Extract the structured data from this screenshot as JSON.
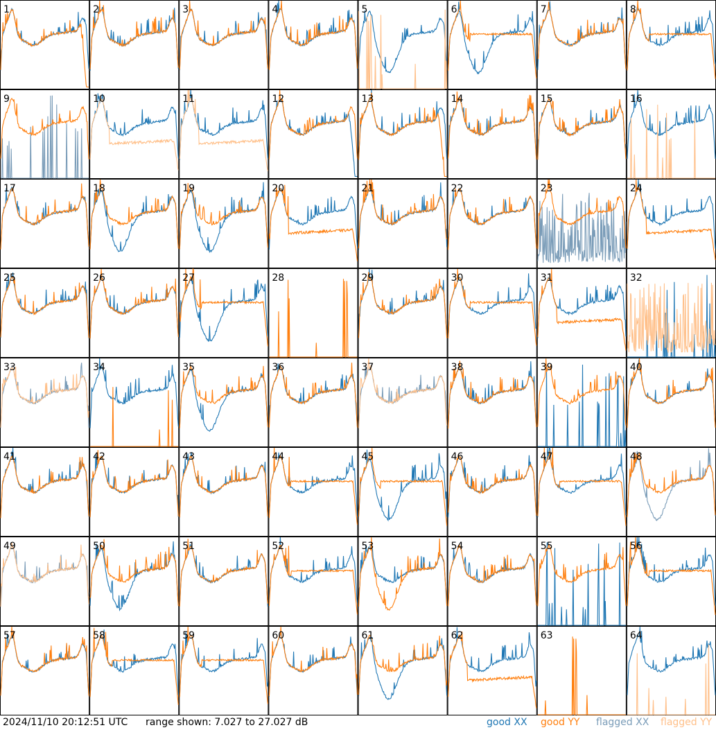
{
  "chart_data": {
    "type": "line",
    "layout": "small-multiples 8x8",
    "timestamp": "2024/11/10 20:12:51 UTC",
    "range_label": "range shown: 7.027 to 27.027 dB",
    "ylim": [
      7.027,
      27.027
    ],
    "y_unit": "dB",
    "legend": [
      {
        "key": "good_xx",
        "label": "good XX",
        "color": "#1f77b4"
      },
      {
        "key": "good_yy",
        "label": "good YY",
        "color": "#ff7f0e"
      },
      {
        "key": "flagged_xx",
        "label": "flagged XX",
        "color": "#7a9cb8"
      },
      {
        "key": "flagged_yy",
        "label": "flagged YY",
        "color": "#ffc08a"
      }
    ],
    "panels": [
      {
        "id": "1",
        "xx": "normal",
        "yy": "dropout",
        "xx_flag": false,
        "yy_flag": false
      },
      {
        "id": "2",
        "xx": "normal",
        "yy": "normal",
        "xx_flag": false,
        "yy_flag": false
      },
      {
        "id": "3",
        "xx": "normal",
        "yy": "normal",
        "xx_flag": false,
        "yy_flag": false
      },
      {
        "id": "4",
        "xx": "normal",
        "yy": "normal",
        "xx_flag": false,
        "yy_flag": false
      },
      {
        "id": "5",
        "xx": "dip",
        "yy": "dead",
        "xx_flag": false,
        "yy_flag": true
      },
      {
        "id": "6",
        "xx": "dip",
        "yy": "flat",
        "xx_flag": false,
        "yy_flag": false
      },
      {
        "id": "7",
        "xx": "normal",
        "yy": "normal",
        "xx_flag": false,
        "yy_flag": false
      },
      {
        "id": "8",
        "xx": "normal",
        "yy": "flat",
        "xx_flag": false,
        "yy_flag": false
      },
      {
        "id": "9",
        "xx": "dead",
        "yy": "normal",
        "xx_flag": true,
        "yy_flag": false
      },
      {
        "id": "10",
        "xx": "normal",
        "yy": "low",
        "xx_flag": false,
        "yy_flag": true
      },
      {
        "id": "11",
        "xx": "normal",
        "yy": "low",
        "xx_flag": false,
        "yy_flag": true
      },
      {
        "id": "12",
        "xx": "dropout",
        "yy": "normal",
        "xx_flag": false,
        "yy_flag": false
      },
      {
        "id": "13",
        "xx": "normal",
        "yy": "dropout",
        "xx_flag": false,
        "yy_flag": false
      },
      {
        "id": "14",
        "xx": "normal",
        "yy": "normal",
        "xx_flag": false,
        "yy_flag": false
      },
      {
        "id": "15",
        "xx": "normal",
        "yy": "normal",
        "xx_flag": false,
        "yy_flag": false
      },
      {
        "id": "16",
        "xx": "normal",
        "yy": "dead",
        "xx_flag": false,
        "yy_flag": true
      },
      {
        "id": "17",
        "xx": "normal",
        "yy": "normal",
        "xx_flag": false,
        "yy_flag": false
      },
      {
        "id": "18",
        "xx": "dip",
        "yy": "normal",
        "xx_flag": false,
        "yy_flag": false
      },
      {
        "id": "19",
        "xx": "dip",
        "yy": "normal",
        "xx_flag": false,
        "yy_flag": false
      },
      {
        "id": "20",
        "xx": "normal",
        "yy": "low",
        "xx_flag": false,
        "yy_flag": false
      },
      {
        "id": "21",
        "xx": "normal",
        "yy": "normal",
        "xx_flag": false,
        "yy_flag": false
      },
      {
        "id": "22",
        "xx": "normal",
        "yy": "normal",
        "xx_flag": false,
        "yy_flag": false
      },
      {
        "id": "23",
        "xx": "noise",
        "yy": "normal",
        "xx_flag": true,
        "yy_flag": false
      },
      {
        "id": "24",
        "xx": "normal",
        "yy": "low",
        "xx_flag": false,
        "yy_flag": false
      },
      {
        "id": "25",
        "xx": "normal",
        "yy": "normal",
        "xx_flag": false,
        "yy_flag": false
      },
      {
        "id": "26",
        "xx": "normal",
        "yy": "normal",
        "xx_flag": false,
        "yy_flag": false
      },
      {
        "id": "27",
        "xx": "dip",
        "yy": "flat",
        "xx_flag": false,
        "yy_flag": false
      },
      {
        "id": "28",
        "xx": "none",
        "yy": "dead",
        "xx_flag": false,
        "yy_flag": false
      },
      {
        "id": "29",
        "xx": "normal",
        "yy": "normal",
        "xx_flag": false,
        "yy_flag": false
      },
      {
        "id": "30",
        "xx": "normal",
        "yy": "flat",
        "xx_flag": false,
        "yy_flag": false
      },
      {
        "id": "31",
        "xx": "normal",
        "yy": "low",
        "xx_flag": false,
        "yy_flag": false
      },
      {
        "id": "32",
        "xx": "dead",
        "yy": "noise",
        "xx_flag": false,
        "yy_flag": true
      },
      {
        "id": "33",
        "xx": "normal",
        "yy": "normal",
        "xx_flag": true,
        "yy_flag": true
      },
      {
        "id": "34",
        "xx": "normal",
        "yy": "dead",
        "xx_flag": false,
        "yy_flag": false
      },
      {
        "id": "35",
        "xx": "dip",
        "yy": "normal",
        "xx_flag": false,
        "yy_flag": false
      },
      {
        "id": "36",
        "xx": "normal",
        "yy": "normal",
        "xx_flag": false,
        "yy_flag": false
      },
      {
        "id": "37",
        "xx": "normal",
        "yy": "normal",
        "xx_flag": true,
        "yy_flag": true
      },
      {
        "id": "38",
        "xx": "normal",
        "yy": "normal",
        "xx_flag": false,
        "yy_flag": false
      },
      {
        "id": "39",
        "xx": "dead",
        "yy": "normal",
        "xx_flag": false,
        "yy_flag": false
      },
      {
        "id": "40",
        "xx": "normal",
        "yy": "normal",
        "xx_flag": false,
        "yy_flag": false
      },
      {
        "id": "41",
        "xx": "normal",
        "yy": "normal",
        "xx_flag": false,
        "yy_flag": false
      },
      {
        "id": "42",
        "xx": "normal",
        "yy": "normal",
        "xx_flag": false,
        "yy_flag": false
      },
      {
        "id": "43",
        "xx": "normal",
        "yy": "normal",
        "xx_flag": false,
        "yy_flag": false
      },
      {
        "id": "44",
        "xx": "normal",
        "yy": "flat",
        "xx_flag": false,
        "yy_flag": false
      },
      {
        "id": "45",
        "xx": "dip",
        "yy": "flat",
        "xx_flag": false,
        "yy_flag": false
      },
      {
        "id": "46",
        "xx": "normal",
        "yy": "normal",
        "xx_flag": false,
        "yy_flag": false
      },
      {
        "id": "47",
        "xx": "normal",
        "yy": "flat",
        "xx_flag": false,
        "yy_flag": false
      },
      {
        "id": "48",
        "xx": "dip",
        "yy": "normal",
        "xx_flag": true,
        "yy_flag": false
      },
      {
        "id": "49",
        "xx": "normal",
        "yy": "normal",
        "xx_flag": true,
        "yy_flag": true
      },
      {
        "id": "50",
        "xx": "dip",
        "yy": "normal",
        "xx_flag": false,
        "yy_flag": false
      },
      {
        "id": "51",
        "xx": "normal",
        "yy": "normal",
        "xx_flag": false,
        "yy_flag": false
      },
      {
        "id": "52",
        "xx": "normal",
        "yy": "flat",
        "xx_flag": false,
        "yy_flag": false
      },
      {
        "id": "53",
        "xx": "normal",
        "yy": "dip",
        "xx_flag": false,
        "yy_flag": false
      },
      {
        "id": "54",
        "xx": "normal",
        "yy": "normal",
        "xx_flag": false,
        "yy_flag": false
      },
      {
        "id": "55",
        "xx": "dead",
        "yy": "normal",
        "xx_flag": false,
        "yy_flag": false
      },
      {
        "id": "56",
        "xx": "normal",
        "yy": "flat",
        "xx_flag": false,
        "yy_flag": false
      },
      {
        "id": "57",
        "xx": "normal",
        "yy": "normal",
        "xx_flag": false,
        "yy_flag": false
      },
      {
        "id": "58",
        "xx": "normal",
        "yy": "flat",
        "xx_flag": false,
        "yy_flag": false
      },
      {
        "id": "59",
        "xx": "normal",
        "yy": "flat",
        "xx_flag": false,
        "yy_flag": false
      },
      {
        "id": "60",
        "xx": "normal",
        "yy": "normal",
        "xx_flag": false,
        "yy_flag": false
      },
      {
        "id": "61",
        "xx": "dip",
        "yy": "normal",
        "xx_flag": false,
        "yy_flag": false
      },
      {
        "id": "62",
        "xx": "normal",
        "yy": "low",
        "xx_flag": false,
        "yy_flag": false
      },
      {
        "id": "63",
        "xx": "none",
        "yy": "dead",
        "xx_flag": false,
        "yy_flag": false
      },
      {
        "id": "64",
        "xx": "normal",
        "yy": "dead",
        "xx_flag": false,
        "yy_flag": true
      }
    ]
  }
}
